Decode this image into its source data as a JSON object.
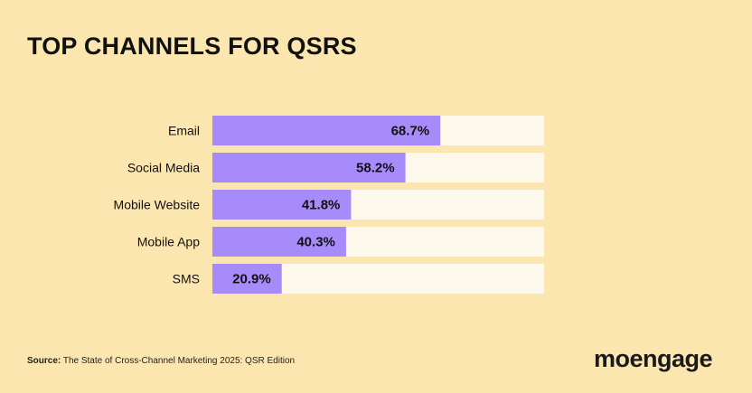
{
  "chart_data": {
    "type": "bar",
    "orientation": "horizontal",
    "title": "TOP CHANNELS FOR QSRS",
    "categories": [
      "Email",
      "Social Media",
      "Mobile Website",
      "Mobile App",
      "SMS"
    ],
    "values": [
      68.7,
      58.2,
      41.8,
      40.3,
      20.9
    ],
    "value_labels": [
      "68.7%",
      "58.2%",
      "41.8%",
      "40.3%",
      "20.9%"
    ],
    "unit": "%",
    "xlim": [
      0,
      100
    ],
    "xlabel": "",
    "ylabel": "",
    "grid": false,
    "legend": "none"
  },
  "source": {
    "label": "Source:",
    "text": "The State of Cross-Channel Marketing 2025: QSR Edition"
  },
  "brand": {
    "logo_text": "moengage"
  },
  "colors": {
    "background": "#fbe6b0",
    "bar": "#a78bfa",
    "track": "#fdf8ec",
    "text": "#111111"
  }
}
